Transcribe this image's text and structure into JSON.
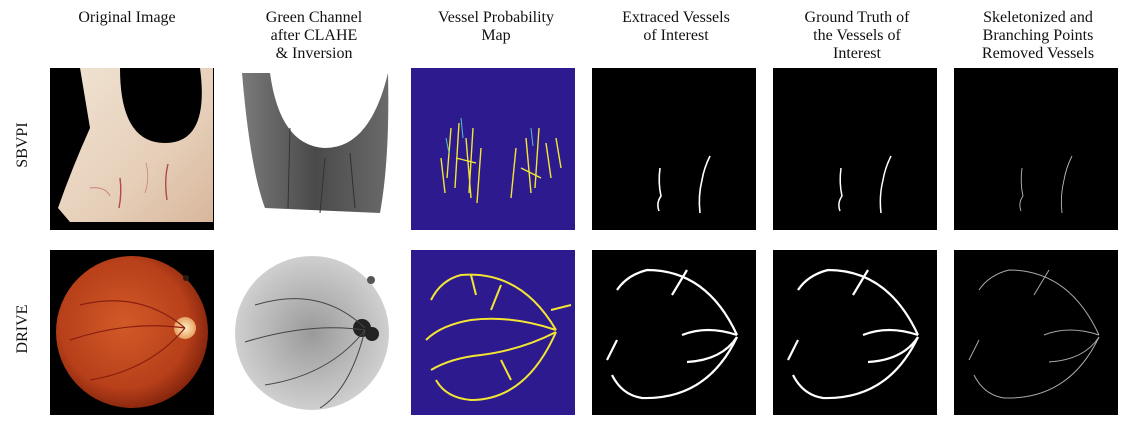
{
  "columns": [
    {
      "label": "Original Image"
    },
    {
      "label": "Green Channel\nafter CLAHE\n&  Inversion"
    },
    {
      "label": "Vessel Probability\nMap"
    },
    {
      "label": "Extraced Vessels\nof Interest"
    },
    {
      "label": "Ground Truth of\nthe Vessels of\nInterest"
    },
    {
      "label": "Skeletonized and\nBranching Points\nRemoved Vessels"
    }
  ],
  "rows": [
    {
      "label": "SBVPI"
    },
    {
      "label": "DRIVE"
    }
  ],
  "colors": {
    "background": "#ffffff",
    "panel_black": "#000000",
    "prob_bg": "#2d1a8f",
    "prob_vessel": "#f2e632",
    "sclera": "#e9d6c3",
    "fundus": "#c9471e"
  }
}
